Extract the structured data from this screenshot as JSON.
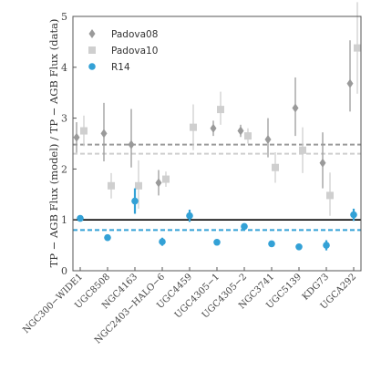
{
  "chart_data": {
    "type": "scatter",
    "ylabel": "TP − AGB Flux (model) / TP − AGB Flux (data)",
    "xlabel": "",
    "ylim": [
      0,
      5
    ],
    "yticks": [
      0,
      1,
      2,
      3,
      4,
      5
    ],
    "categories": [
      "NGC300−WIDE1",
      "UGC8508",
      "NGC4163",
      "NGC2403−HALO−6",
      "UGC4459",
      "UGC4305−1",
      "UGC4305−2",
      "NGC3741",
      "UGC5139",
      "KDG73",
      "UGCA292"
    ],
    "grid": false,
    "legend_position": "top-left",
    "series": [
      {
        "name": "Padova08",
        "color": "#9a9a9a",
        "marker": "diamond",
        "values": [
          2.62,
          2.7,
          2.48,
          1.73,
          null,
          2.8,
          2.75,
          2.58,
          3.2,
          2.12,
          3.68
        ],
        "err_low": [
          0.3,
          0.55,
          0.45,
          0.25,
          null,
          0.15,
          0.12,
          0.35,
          0.55,
          0.5,
          0.55
        ],
        "err_high": [
          0.3,
          0.6,
          0.7,
          0.25,
          null,
          0.15,
          0.12,
          0.42,
          0.6,
          0.6,
          0.85
        ]
      },
      {
        "name": "Padova10",
        "color": "#cfcfcf",
        "marker": "square",
        "values": [
          2.75,
          1.67,
          1.67,
          1.8,
          2.82,
          3.17,
          2.65,
          2.03,
          2.37,
          1.48,
          4.38
        ],
        "err_low": [
          0.3,
          0.25,
          0.45,
          0.15,
          0.45,
          0.3,
          0.15,
          0.3,
          0.45,
          0.4,
          0.9
        ],
        "err_high": [
          0.3,
          0.25,
          0.5,
          0.15,
          0.45,
          0.35,
          0.15,
          0.3,
          0.45,
          0.45,
          0.9
        ]
      },
      {
        "name": "R14",
        "color": "#33a1d6",
        "marker": "circle",
        "values": [
          1.03,
          0.65,
          1.37,
          0.57,
          1.08,
          0.56,
          0.87,
          0.53,
          0.47,
          0.5,
          1.1
        ],
        "err_low": [
          0.04,
          0.06,
          0.25,
          0.08,
          0.12,
          0.02,
          0.02,
          0.03,
          0.02,
          0.1,
          0.12
        ],
        "err_high": [
          0.04,
          0.06,
          0.25,
          0.08,
          0.12,
          0.02,
          0.02,
          0.03,
          0.02,
          0.1,
          0.12
        ]
      }
    ],
    "reference_lines": [
      {
        "y": 1.0,
        "color": "#000000",
        "style": "solid"
      },
      {
        "y": 2.48,
        "color": "#9a9a9a",
        "style": "dashed"
      },
      {
        "y": 2.3,
        "color": "#cfcfcf",
        "style": "dashed"
      },
      {
        "y": 0.8,
        "color": "#33a1d6",
        "style": "dashed"
      }
    ]
  }
}
